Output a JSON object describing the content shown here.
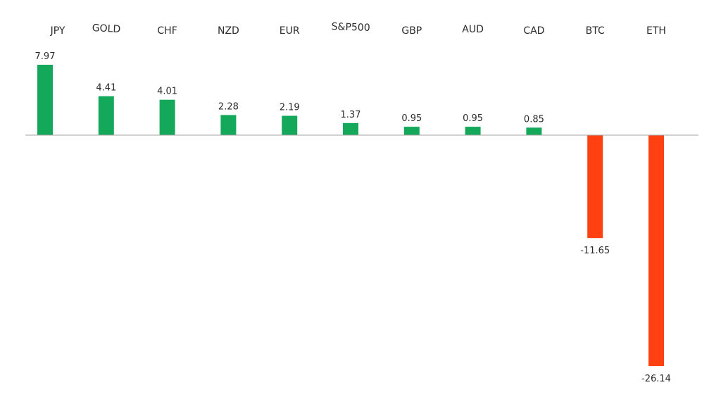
{
  "chart_data": {
    "type": "bar",
    "categories": [
      "JPY",
      "GOLD",
      "CHF",
      "NZD",
      "EUR",
      "S&P500",
      "GBP",
      "AUD",
      "CAD",
      "BTC",
      "ETH"
    ],
    "values": [
      7.97,
      4.41,
      4.01,
      2.28,
      2.19,
      1.37,
      0.95,
      0.95,
      0.85,
      -11.65,
      -26.14
    ],
    "data_labels": [
      "7.97",
      "4.41",
      "4.01",
      "2.28",
      "2.19",
      "1.37",
      "0.95",
      "0.95",
      "0.85",
      "-11.65",
      "-26.14"
    ],
    "title": "",
    "xlabel": "",
    "ylabel": "",
    "ylim": [
      -26.14,
      7.97
    ],
    "grid": false,
    "legend": "none",
    "colors": {
      "positive": "#14a85a",
      "negative": "#ff4010",
      "axis": "#a6a6a6"
    }
  }
}
